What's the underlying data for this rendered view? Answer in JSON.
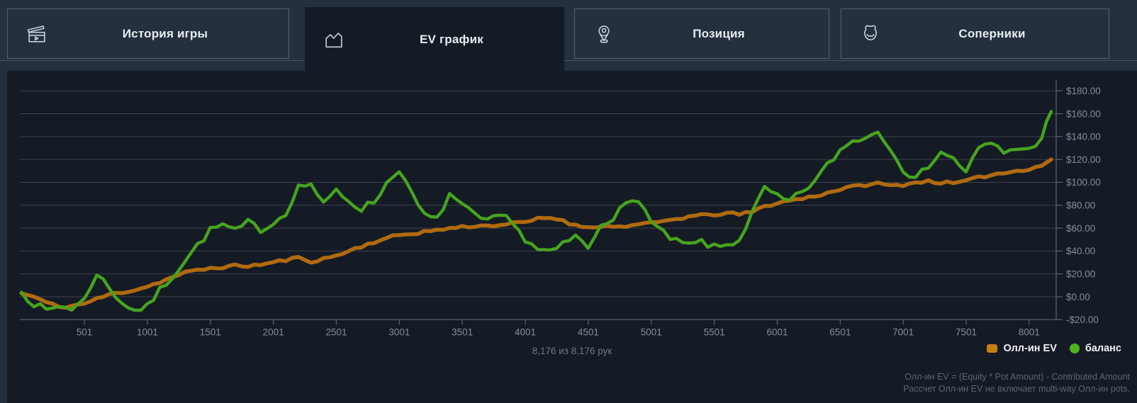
{
  "tabs": [
    {
      "label": "История игры",
      "icon": "clapperboard-icon",
      "active": false
    },
    {
      "label": "EV график",
      "icon": "area-chart-icon",
      "active": true
    },
    {
      "label": "Позиция",
      "icon": "position-pin-icon",
      "active": false
    },
    {
      "label": "Соперники",
      "icon": "opponents-devil-icon",
      "active": false
    }
  ],
  "colors": {
    "page_bg": "#24303e",
    "panel_bg": "#141b25",
    "tab_border": "#55616e",
    "grid": "#3c434e",
    "axis": "#5d646e",
    "tick_label": "#848d97",
    "ev_line": "#b16a10",
    "balance_line": "#46a41e",
    "legend_ev": "#c87d15",
    "legend_balance": "#4db31f"
  },
  "chart": {
    "hands_counter": "8,176 из 8,176 рук",
    "legend": [
      {
        "label": "Олл-ин EV",
        "marker": "square",
        "color": "#c87d15"
      },
      {
        "label": "баланс",
        "marker": "circle",
        "color": "#4db31f"
      }
    ],
    "footnote_line1": "Олл-ин EV = (Equity * Pot Amount) - Contributed Amount",
    "footnote_line2": "Рассчет Олл-ин EV не включает multi-way Олл-ин pots."
  },
  "chart_data": {
    "type": "line",
    "title": "",
    "xlabel": "hands",
    "ylabel": "$",
    "xlim": [
      1,
      8176
    ],
    "ylim": [
      -20,
      180
    ],
    "grid": "horizontal-only",
    "legend_position": "bottom-right",
    "y_ticks": [
      180,
      160,
      140,
      120,
      100,
      80,
      60,
      40,
      20,
      0,
      -20
    ],
    "y_tick_format": "$%.2f",
    "x_ticks": [
      501,
      1001,
      1501,
      2001,
      2501,
      3001,
      3501,
      4001,
      4501,
      5001,
      5501,
      6001,
      6501,
      7001,
      7501,
      8001
    ],
    "x": [
      1,
      100,
      200,
      300,
      400,
      500,
      600,
      700,
      800,
      900,
      1000,
      1100,
      1200,
      1300,
      1400,
      1500,
      1600,
      1700,
      1800,
      1900,
      2000,
      2100,
      2200,
      2300,
      2400,
      2500,
      2600,
      2700,
      2800,
      2900,
      3000,
      3100,
      3200,
      3300,
      3400,
      3500,
      3600,
      3700,
      3800,
      3900,
      4000,
      4100,
      4200,
      4300,
      4400,
      4500,
      4600,
      4700,
      4800,
      4900,
      5000,
      5100,
      5200,
      5300,
      5400,
      5500,
      5600,
      5700,
      5800,
      5900,
      6000,
      6100,
      6200,
      6300,
      6400,
      6500,
      6600,
      6700,
      6800,
      6900,
      7000,
      7100,
      7200,
      7300,
      7400,
      7500,
      7600,
      7700,
      7800,
      7900,
      8000,
      8100,
      8176
    ],
    "series": [
      {
        "name": "Олл-ин EV",
        "color": "#b16a10",
        "values": [
          3,
          0,
          -5,
          -9,
          -8,
          -6,
          -2,
          2,
          4,
          6,
          9,
          13,
          17,
          21,
          23,
          25,
          26,
          27,
          27,
          28,
          30,
          32,
          34,
          31,
          33,
          36,
          40,
          44,
          48,
          51,
          54,
          55,
          57,
          58,
          60,
          61,
          62,
          62,
          63,
          64,
          65,
          68,
          69,
          67,
          62,
          61,
          62,
          61,
          62,
          63,
          64,
          66,
          68,
          70,
          71,
          72,
          73,
          72,
          74,
          79,
          82,
          84,
          86,
          88,
          91,
          94,
          96,
          98,
          99,
          97,
          98,
          100,
          101,
          100,
          99,
          101,
          104,
          107,
          108,
          110,
          112,
          115,
          120
        ]
      },
      {
        "name": "баланс",
        "color": "#46a41e",
        "values": [
          4,
          -6,
          -12,
          -8,
          -10,
          -3,
          21,
          7,
          -5,
          -12,
          -9,
          6,
          18,
          32,
          45,
          58,
          63,
          57,
          65,
          59,
          64,
          74,
          96,
          99,
          80,
          93,
          84,
          77,
          83,
          99,
          112,
          89,
          71,
          67,
          90,
          79,
          71,
          65,
          71,
          67,
          49,
          41,
          38,
          46,
          53,
          42,
          64,
          70,
          80,
          86,
          65,
          55,
          48,
          45,
          48,
          43,
          45,
          50,
          72,
          95,
          87,
          83,
          92,
          101,
          115,
          128,
          136,
          140,
          144,
          131,
          112,
          102,
          115,
          127,
          120,
          110,
          129,
          134,
          126,
          130,
          128,
          140,
          162
        ]
      }
    ]
  }
}
